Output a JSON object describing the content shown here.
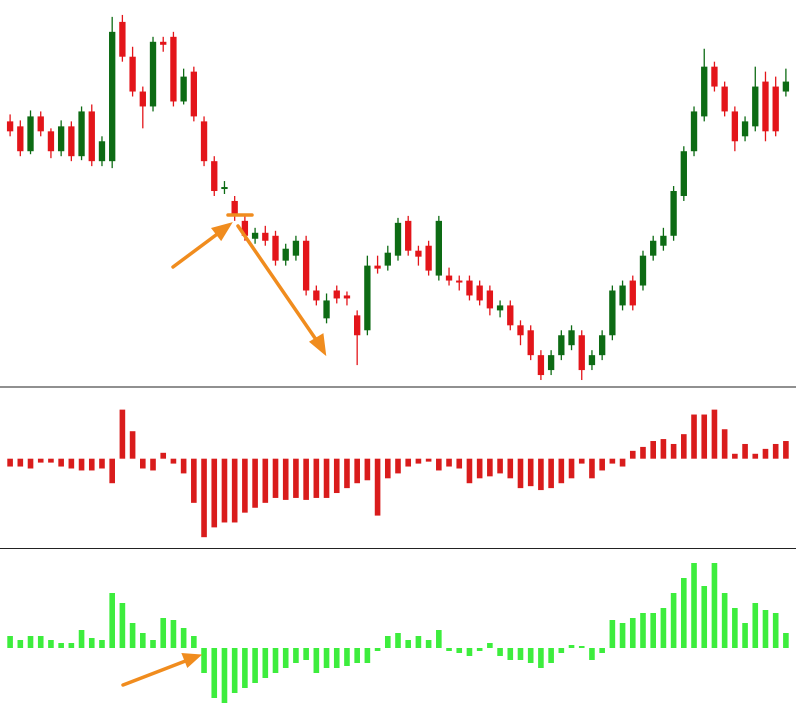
{
  "chart_data": [
    {
      "type": "candlestick",
      "up_color": "#0d6b14",
      "down_color": "#e3151a",
      "ylim": [
        0,
        385
      ],
      "open": [
        265,
        260,
        235,
        270,
        255,
        235,
        260,
        230,
        275,
        225,
        225,
        365,
        330,
        295,
        280,
        345,
        350,
        285,
        315,
        265,
        225,
        197,
        185,
        165,
        147,
        153,
        150,
        125,
        130,
        145,
        95,
        67,
        95,
        90,
        70,
        55,
        120,
        120,
        130,
        165,
        135,
        140,
        110,
        110,
        105,
        105,
        100,
        95,
        75,
        80,
        60,
        55,
        30,
        15,
        30,
        40,
        50,
        20,
        30,
        50,
        80,
        105,
        100,
        130,
        140,
        150,
        190,
        235,
        270,
        320,
        300,
        275,
        250,
        260,
        305,
        300,
        295
      ],
      "high": [
        272,
        266,
        276,
        275,
        258,
        266,
        265,
        280,
        282,
        250,
        370,
        372,
        340,
        300,
        350,
        350,
        355,
        318,
        320,
        270,
        230,
        205,
        190,
        170,
        158,
        160,
        155,
        142,
        150,
        150,
        100,
        92,
        100,
        94,
        75,
        130,
        130,
        140,
        168,
        170,
        140,
        145,
        170,
        118,
        110,
        110,
        105,
        100,
        85,
        85,
        65,
        60,
        35,
        35,
        55,
        60,
        55,
        35,
        55,
        100,
        105,
        110,
        135,
        150,
        158,
        200,
        240,
        280,
        338,
        325,
        305,
        280,
        270,
        320,
        315,
        310,
        318
      ],
      "low": [
        250,
        230,
        232,
        250,
        228,
        230,
        225,
        226,
        220,
        220,
        218,
        325,
        290,
        258,
        275,
        335,
        280,
        282,
        265,
        220,
        190,
        192,
        165,
        145,
        142,
        140,
        120,
        120,
        125,
        90,
        80,
        62,
        82,
        80,
        20,
        50,
        112,
        115,
        125,
        130,
        120,
        110,
        105,
        100,
        95,
        85,
        80,
        70,
        68,
        55,
        40,
        25,
        5,
        10,
        25,
        35,
        5,
        15,
        25,
        45,
        75,
        75,
        95,
        125,
        135,
        145,
        185,
        230,
        265,
        295,
        270,
        235,
        245,
        255,
        245,
        250,
        290
      ],
      "close": [
        255,
        235,
        270,
        255,
        235,
        260,
        230,
        275,
        225,
        245,
        355,
        330,
        295,
        280,
        345,
        342,
        285,
        310,
        270,
        225,
        195,
        199,
        170,
        150,
        153,
        145,
        125,
        137,
        145,
        95,
        85,
        85,
        87,
        87,
        50,
        120,
        117,
        133,
        163,
        135,
        129,
        115,
        165,
        105,
        103,
        90,
        85,
        77,
        80,
        60,
        50,
        30,
        10,
        30,
        50,
        55,
        15,
        30,
        50,
        95,
        100,
        80,
        130,
        145,
        150,
        195,
        235,
        275,
        320,
        300,
        275,
        245,
        265,
        300,
        255,
        255,
        305
      ]
    },
    {
      "type": "bar",
      "color": "#d91c1c",
      "ylim": [
        -90,
        70
      ],
      "values": [
        -8,
        -8,
        -10,
        -4,
        -4,
        -8,
        -10,
        -12,
        -12,
        -10,
        -25,
        50,
        28,
        -10,
        -12,
        6,
        -5,
        -15,
        -45,
        -80,
        -70,
        -65,
        -65,
        -55,
        -50,
        -45,
        -40,
        -42,
        -40,
        -42,
        -40,
        -40,
        -35,
        -30,
        -25,
        -22,
        -58,
        -20,
        -15,
        -8,
        -5,
        -3,
        -12,
        -8,
        -10,
        -25,
        -20,
        -18,
        -15,
        -20,
        -30,
        -28,
        -32,
        -30,
        -25,
        -20,
        -5,
        -20,
        -12,
        -5,
        -8,
        8,
        12,
        18,
        20,
        15,
        25,
        45,
        45,
        50,
        30,
        5,
        15,
        5,
        10,
        15,
        18
      ]
    },
    {
      "type": "bar",
      "color": "#3ded3d",
      "ylim": [
        -65,
        98
      ],
      "values": [
        12,
        8,
        12,
        12,
        8,
        5,
        5,
        18,
        10,
        8,
        55,
        45,
        25,
        15,
        8,
        30,
        28,
        20,
        12,
        -25,
        -50,
        -55,
        -45,
        -40,
        -35,
        -30,
        -25,
        -20,
        -15,
        -12,
        -25,
        -20,
        -20,
        -18,
        -15,
        -15,
        -3,
        12,
        15,
        8,
        12,
        8,
        18,
        -3,
        -5,
        -8,
        -3,
        5,
        -8,
        -12,
        -12,
        -15,
        -20,
        -15,
        -5,
        3,
        2,
        -12,
        -5,
        28,
        25,
        30,
        35,
        35,
        40,
        55,
        70,
        85,
        62,
        85,
        55,
        40,
        25,
        45,
        38,
        35,
        15
      ]
    }
  ]
}
